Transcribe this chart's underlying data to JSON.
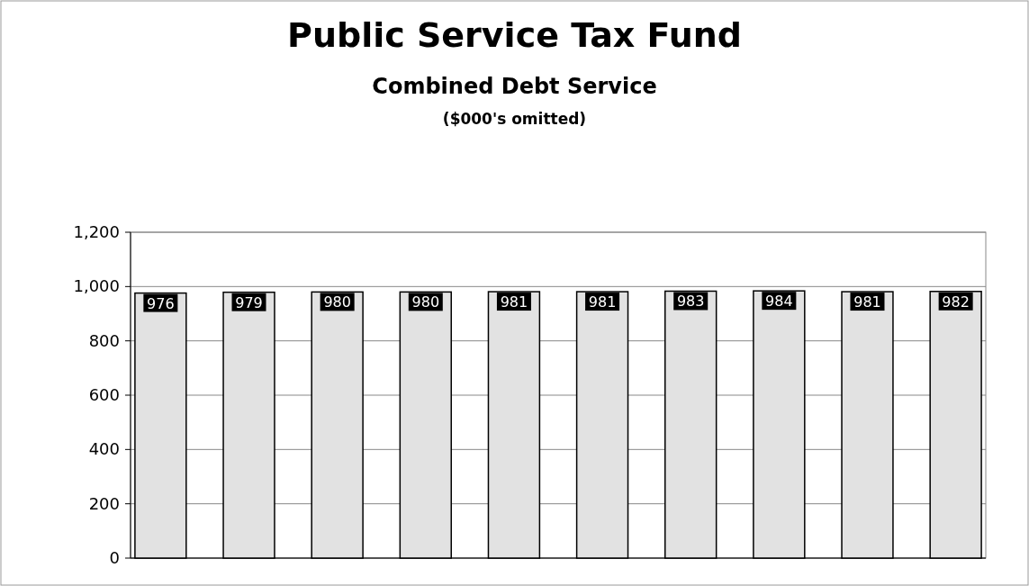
{
  "chart_data": {
    "type": "bar",
    "title": "Public Service Tax Fund",
    "subtitle": "Combined Debt Service",
    "annotations": [
      "($000's omitted)"
    ],
    "categories": [
      null,
      null,
      null,
      null,
      null,
      null,
      null,
      null,
      null,
      null
    ],
    "values": [
      976,
      979,
      980,
      980,
      981,
      981,
      983,
      984,
      981,
      982
    ],
    "color": "#e2e2e2",
    "ylim": [
      0,
      1200
    ],
    "yticks": [
      {
        "value": 0,
        "label": "0"
      },
      {
        "value": 200,
        "label": "200"
      },
      {
        "value": 400,
        "label": "400"
      },
      {
        "value": 600,
        "label": "600"
      },
      {
        "value": 800,
        "label": "800"
      },
      {
        "value": 1000,
        "label": "1,000"
      },
      {
        "value": 1200,
        "label": "1,200"
      }
    ],
    "grid": "y",
    "data_labels": true
  }
}
